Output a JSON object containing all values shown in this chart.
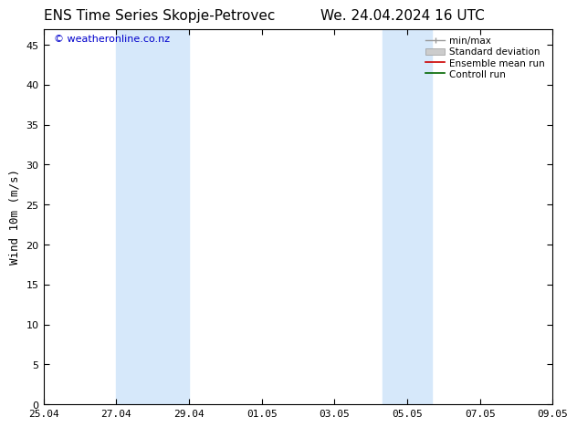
{
  "title_left": "ENS Time Series Skopje-Petrovec",
  "title_right": "We. 24.04.2024 16 UTC",
  "ylabel": "Wind 10m (m/s)",
  "watermark": "© weatheronline.co.nz",
  "background_color": "#ffffff",
  "plot_bg_color": "#ffffff",
  "ylim": [
    0,
    47
  ],
  "yticks": [
    0,
    5,
    10,
    15,
    20,
    25,
    30,
    35,
    40,
    45
  ],
  "xlim": [
    0,
    14
  ],
  "xtick_labels": [
    "25.04",
    "27.04",
    "29.04",
    "01.05",
    "03.05",
    "05.05",
    "07.05",
    "09.05"
  ],
  "xtick_positions": [
    0,
    2,
    4,
    6,
    8,
    10,
    12,
    14
  ],
  "shaded_bands": [
    {
      "x_start": 2,
      "x_end": 4,
      "color": "#d6e8fa"
    },
    {
      "x_start": 9.33,
      "x_end": 10.67,
      "color": "#d6e8fa"
    }
  ],
  "legend_items": [
    {
      "label": "min/max",
      "color": "#aaaaaa",
      "style": "line_with_caps"
    },
    {
      "label": "Standard deviation",
      "color": "#cccccc",
      "style": "bar"
    },
    {
      "label": "Ensemble mean run",
      "color": "#cc0000",
      "style": "line"
    },
    {
      "label": "Controll run",
      "color": "#006600",
      "style": "line"
    }
  ],
  "title_fontsize": 11,
  "axis_label_fontsize": 9,
  "tick_fontsize": 8,
  "legend_fontsize": 7.5,
  "watermark_color": "#0000cc",
  "watermark_fontsize": 8
}
